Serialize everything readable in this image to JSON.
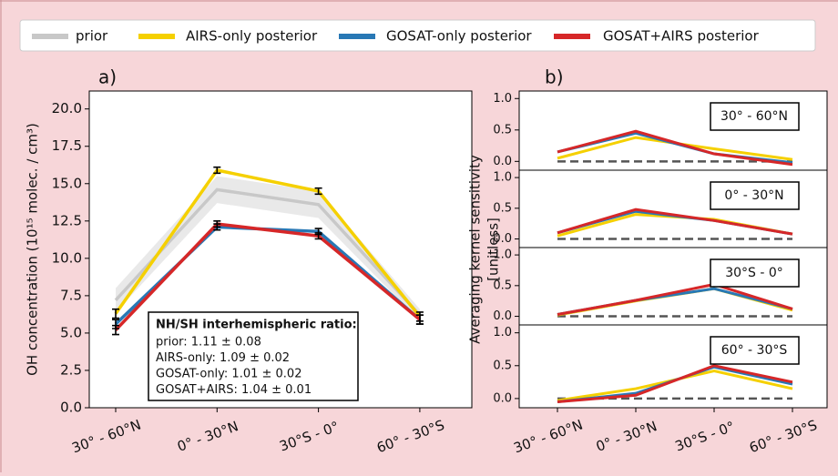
{
  "chart_data": [
    {
      "type": "line",
      "panel_label": "a)",
      "ylabel": "OH concentration (10¹⁵ molec. / cm³)",
      "categories": [
        "30° - 60°N",
        "0° - 30°N",
        "30°S - 0°",
        "60° - 30°S"
      ],
      "ylim": [
        0,
        21.2
      ],
      "yticks": [
        {
          "value": 0,
          "label": "0.0"
        },
        {
          "value": 2.5,
          "label": "2.5"
        },
        {
          "value": 5,
          "label": "5.0"
        },
        {
          "value": 7.5,
          "label": "7.5"
        },
        {
          "value": 10,
          "label": "10.0"
        },
        {
          "value": 12.5,
          "label": "12.5"
        },
        {
          "value": 15,
          "label": "15.0"
        },
        {
          "value": 17.5,
          "label": "17.5"
        },
        {
          "value": 20,
          "label": "20.0"
        }
      ],
      "series": [
        {
          "name": "prior",
          "color": "#c8c8c8",
          "values": [
            7.2,
            14.6,
            13.6,
            6.2
          ],
          "errors": [
            0.8,
            0.9,
            0.9,
            0.4
          ],
          "band": true
        },
        {
          "name": "AIRS-only posterior",
          "color": "#f5d000",
          "values": [
            6.3,
            15.9,
            14.5,
            6.1
          ],
          "errors": [
            0.3,
            0.2,
            0.2,
            0.3
          ]
        },
        {
          "name": "GOSAT-only posterior",
          "color": "#2878b5",
          "values": [
            5.6,
            12.1,
            11.8,
            5.9
          ],
          "errors": [
            0.3,
            0.2,
            0.2,
            0.3
          ]
        },
        {
          "name": "GOSAT+AIRS posterior",
          "color": "#d62728",
          "values": [
            5.2,
            12.3,
            11.5,
            5.9
          ],
          "errors": [
            0.3,
            0.2,
            0.2,
            0.3
          ]
        }
      ],
      "annotation": {
        "title": "NH/SH interhemispheric ratio:",
        "lines": [
          "prior: 1.11 ± 0.08",
          "AIRS-only: 1.09 ± 0.02",
          "GOSAT-only: 1.01 ± 0.02",
          "GOSAT+AIRS: 1.04 ± 0.01"
        ]
      }
    },
    {
      "type": "line",
      "panel_label": "b)",
      "ylabel": [
        "Averaging kernel sensitivity",
        "[unitless]"
      ],
      "categories": [
        "30° - 60°N",
        "0° - 30°N",
        "30°S - 0°",
        "60° - 30°S"
      ],
      "ylim": [
        -0.14,
        1.12
      ],
      "yticks": [
        {
          "value": 0,
          "label": "0.0"
        },
        {
          "value": 0.5,
          "label": "0.5"
        },
        {
          "value": 1,
          "label": "1.0"
        }
      ],
      "panels": [
        {
          "title": "30° - 60°N",
          "series": [
            {
              "color": "#f5d000",
              "values": [
                0.05,
                0.38,
                0.2,
                0.03
              ]
            },
            {
              "color": "#2878b5",
              "values": [
                0.15,
                0.45,
                0.12,
                -0.02
              ]
            },
            {
              "color": "#d62728",
              "values": [
                0.15,
                0.48,
                0.12,
                -0.05
              ]
            }
          ]
        },
        {
          "title": "0° - 30°N",
          "series": [
            {
              "color": "#f5d000",
              "values": [
                0.05,
                0.4,
                0.32,
                0.08
              ]
            },
            {
              "color": "#2878b5",
              "values": [
                0.1,
                0.45,
                0.3,
                0.08
              ]
            },
            {
              "color": "#d62728",
              "values": [
                0.1,
                0.48,
                0.3,
                0.08
              ]
            }
          ]
        },
        {
          "title": "30°S -  0°",
          "series": [
            {
              "color": "#f5d000",
              "values": [
                0.02,
                0.25,
                0.45,
                0.1
              ]
            },
            {
              "color": "#2878b5",
              "values": [
                0.03,
                0.26,
                0.45,
                0.12
              ]
            },
            {
              "color": "#d62728",
              "values": [
                0.03,
                0.26,
                0.52,
                0.12
              ]
            }
          ]
        },
        {
          "title": "60° - 30°S",
          "series": [
            {
              "color": "#f5d000",
              "values": [
                -0.03,
                0.15,
                0.42,
                0.15
              ]
            },
            {
              "color": "#2878b5",
              "values": [
                -0.05,
                0.08,
                0.48,
                0.22
              ]
            },
            {
              "color": "#d62728",
              "values": [
                -0.05,
                0.05,
                0.5,
                0.25
              ]
            }
          ]
        }
      ]
    }
  ]
}
